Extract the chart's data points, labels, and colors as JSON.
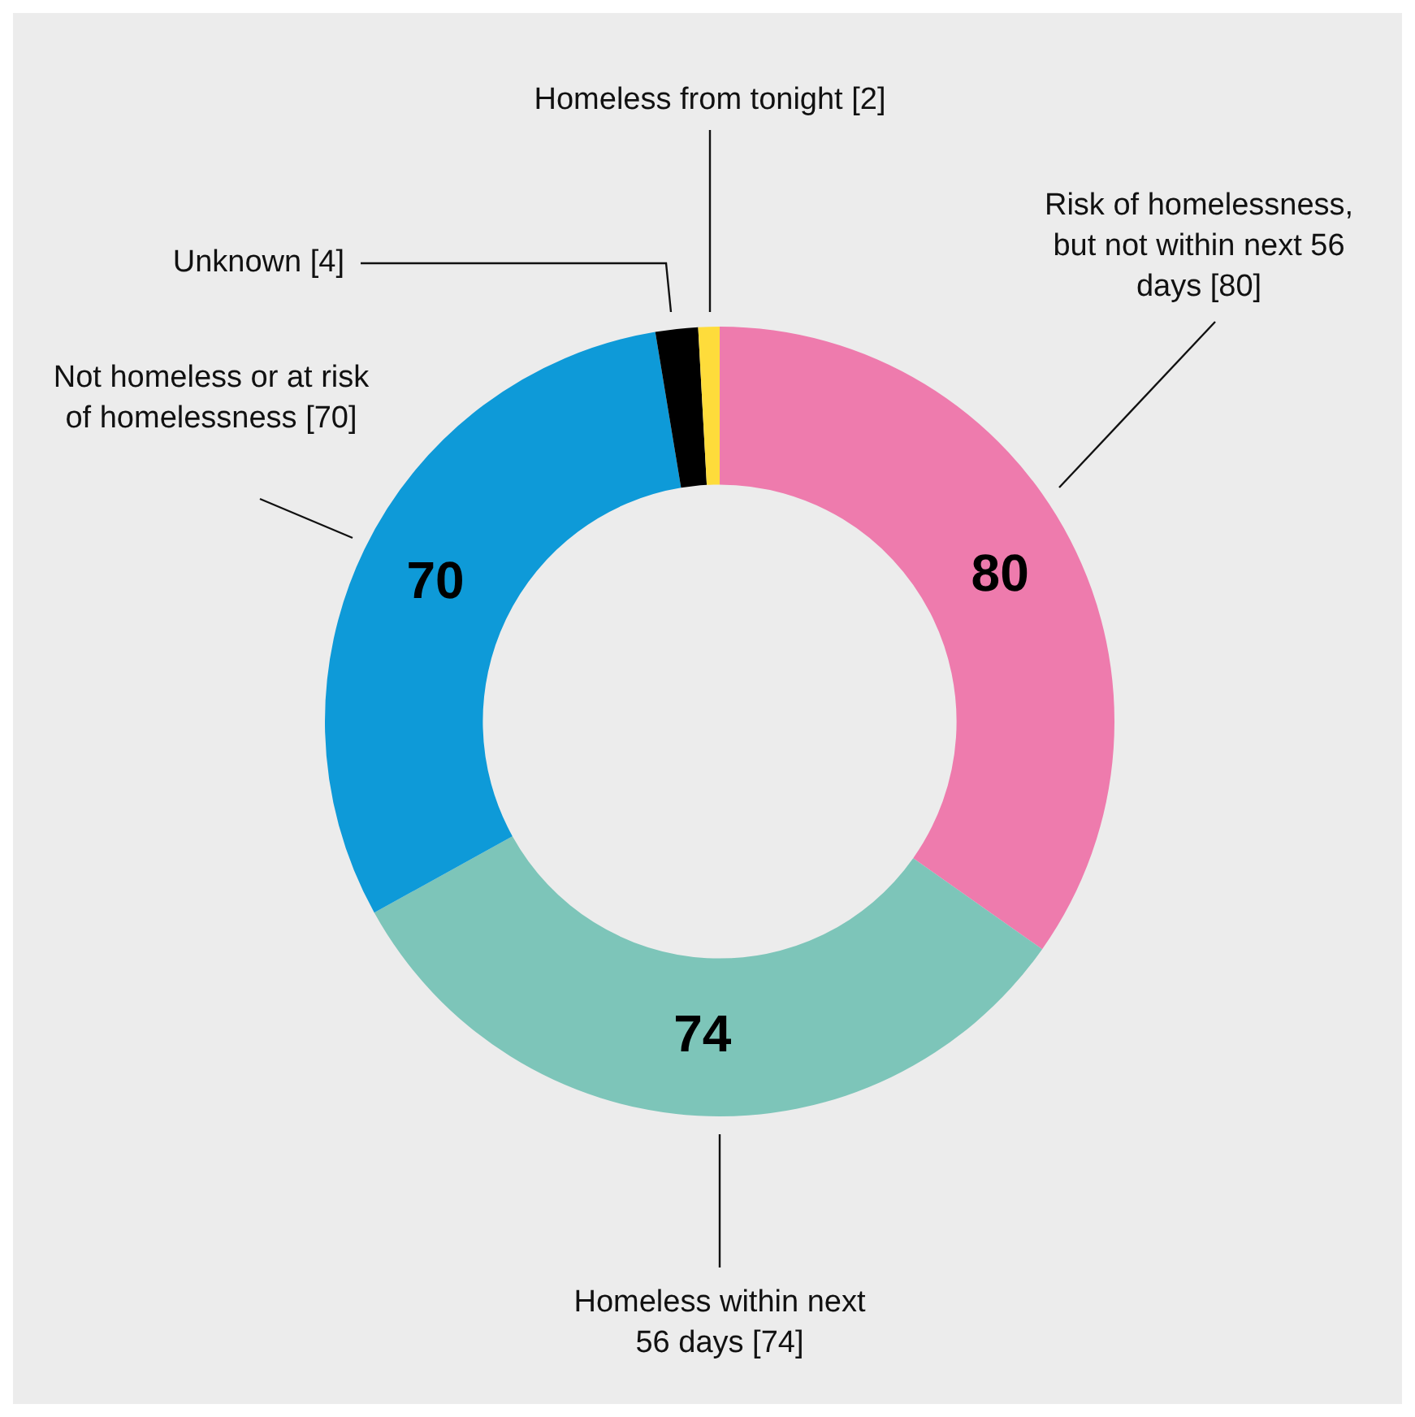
{
  "chart_data": {
    "type": "donut",
    "categories": [
      "Risk of homelessness, but not within next 56 days [80]",
      "Homeless within next 56 days [74]",
      "Not homeless or at risk of homelessness [70]",
      "Unknown [4]",
      "Homeless from tonight [2]"
    ],
    "values": [
      80,
      74,
      70,
      4,
      2
    ],
    "colors": [
      "#ee7bad",
      "#7dc5b9",
      "#0e9ad8",
      "#000000",
      "#fedc3b"
    ],
    "value_labels": [
      "80",
      "74",
      "70",
      null,
      null
    ],
    "legend": false
  }
}
